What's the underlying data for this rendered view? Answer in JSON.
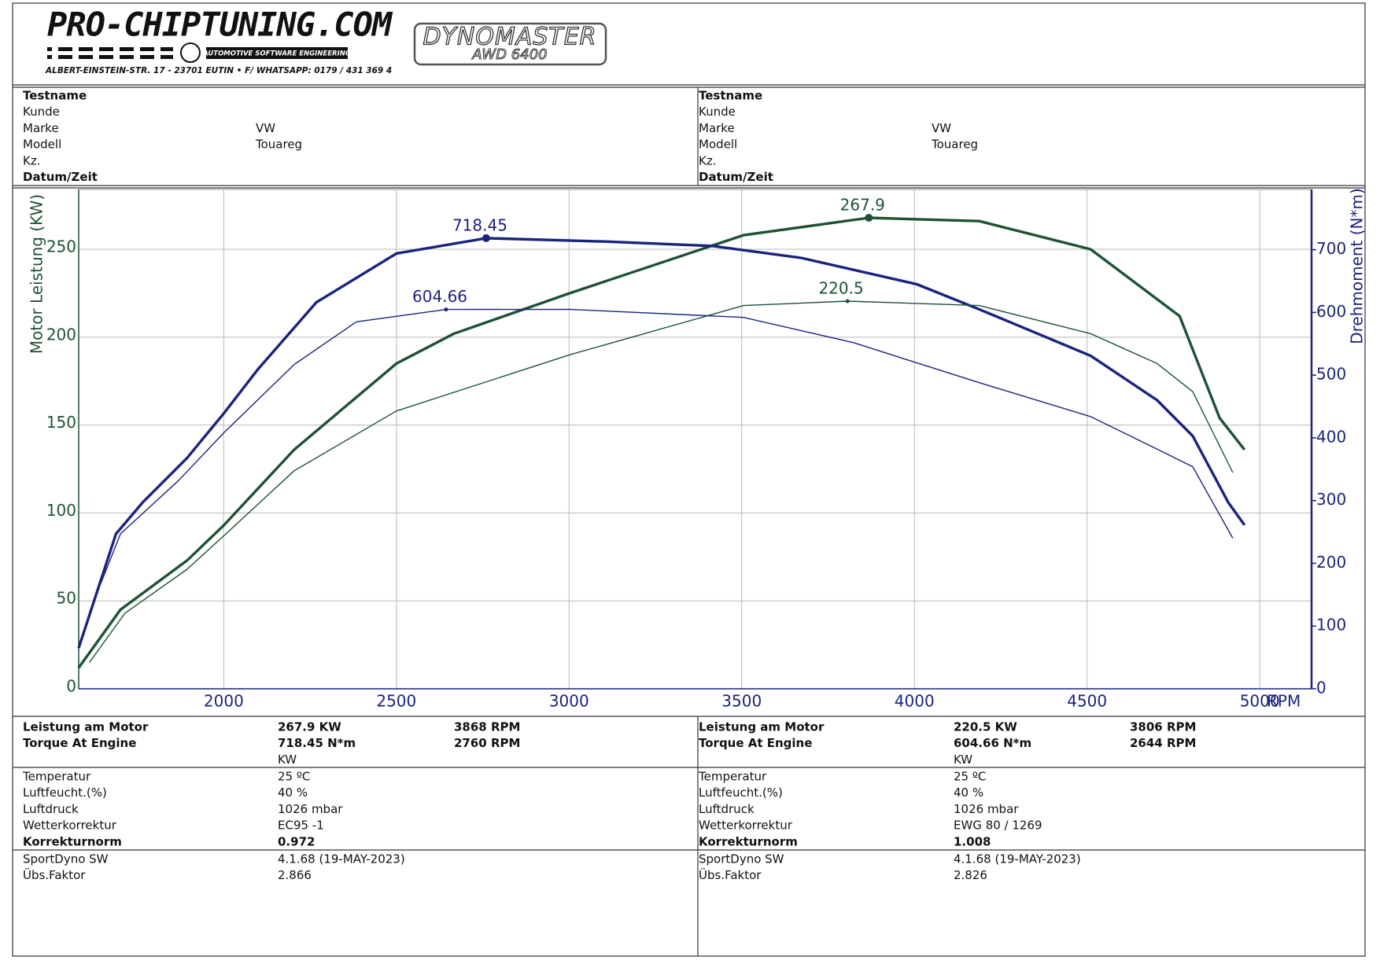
{
  "header": {
    "brand": "PRO-CHIPTUNING.COM",
    "tagline": "AUTOMOTIVE SOFTWARE ENGINEERING",
    "address": "ALBERT-EINSTEIN-STR. 17 - 23701 EUTIN • F/ WHATSAPP: 0179 / 431 369 4",
    "dyno": "DYNOMASTER",
    "dyno_model": "AWD 6400"
  },
  "info": {
    "columns": [
      [
        [
          "Testname"
        ],
        [
          "Kunde"
        ],
        [
          "Marke",
          "VW"
        ],
        [
          "Modell",
          "Touareg"
        ],
        [
          "Kz."
        ],
        [
          "Datum/Zeit"
        ]
      ],
      [
        [
          "Testname"
        ],
        [
          "Kunde"
        ],
        [
          "Marke",
          "VW"
        ],
        [
          "Modell",
          "Touareg"
        ],
        [
          "Kz."
        ],
        [
          "Datum/Zeit"
        ]
      ]
    ]
  },
  "chart_data": {
    "type": "line",
    "xlabel": "RPM",
    "ylabel": "Motor Leistung (KW)",
    "y2label": "Drehmoment (N*m)",
    "xlim": [
      1580,
      5150
    ],
    "xticks": [
      2000,
      2500,
      3000,
      3500,
      4000,
      4500,
      5000
    ],
    "ylim": [
      0,
      284
    ],
    "yticks": [
      0,
      50,
      100,
      150,
      200,
      250
    ],
    "y2lim": [
      0,
      796
    ],
    "y2ticks": [
      0,
      100,
      200,
      300,
      400,
      500,
      600,
      700
    ],
    "ycolor": "#1d5234",
    "y2color": "#1a237e",
    "grid": true,
    "series": [
      {
        "color": "#1d5234",
        "axis": "y",
        "x": [
          1580,
          1701,
          1894,
          2000,
          2204,
          2500,
          2667,
          3002,
          3505,
          3868,
          4188,
          4510,
          4768,
          4884,
          4956
        ],
        "values": [
          12,
          45,
          73,
          93,
          136,
          185,
          202,
          225,
          258,
          267.9,
          266,
          250,
          212,
          154,
          136
        ],
        "peak": {
          "x": 3868,
          "value": 267.9
        }
      },
      {
        "color": "#1a237e",
        "axis": "y2",
        "x": [
          1580,
          1688,
          1765,
          1894,
          2000,
          2100,
          2268,
          2500,
          2760,
          3105,
          3415,
          3672,
          4007,
          4188,
          4510,
          4703,
          4806,
          4909,
          4956
        ],
        "values": [
          65,
          247,
          297,
          368,
          439,
          510,
          616,
          694,
          718.45,
          713,
          706,
          687,
          645,
          605,
          531,
          460,
          403,
          297,
          261
        ],
        "peak": {
          "x": 2760,
          "value": 718.45
        }
      },
      {
        "color": "#1d5234",
        "axis": "y",
        "x": [
          1611,
          1714,
          1894,
          2000,
          2204,
          2500,
          3002,
          3505,
          3806,
          4188,
          4510,
          4703,
          4806,
          4922
        ],
        "values": [
          15,
          43,
          68,
          87,
          124,
          158,
          190,
          218,
          220.5,
          218,
          202,
          185,
          169,
          123
        ],
        "peak": {
          "x": 3806,
          "value": 220.5
        }
      },
      {
        "color": "#1a237e",
        "axis": "y2",
        "x": [
          1611,
          1701,
          1869,
          2000,
          2204,
          2384,
          2644,
          3002,
          3505,
          3822,
          4188,
          4510,
          4703,
          4806,
          4922
        ],
        "values": [
          122,
          247,
          332,
          408,
          517,
          585,
          604.66,
          605,
          592,
          552,
          488,
          434,
          382,
          354,
          240
        ],
        "peak": {
          "x": 2644,
          "value": 604.66
        }
      }
    ]
  },
  "results": {
    "columns": [
      [
        [
          "Leistung am Motor",
          "267.9 KW",
          "3868 RPM"
        ],
        [
          "Torque At Engine",
          "718.45 N*m",
          "2760 RPM"
        ],
        [
          null,
          "KW"
        ]
      ],
      [
        [
          "Leistung am Motor",
          "220.5 KW",
          "3806 RPM"
        ],
        [
          "Torque At Engine",
          "604.66 N*m",
          "2644 RPM"
        ],
        [
          null,
          "KW"
        ]
      ]
    ]
  },
  "conditions": {
    "columns": [
      [
        [
          "Temperatur",
          "25 ºC"
        ],
        [
          "Luftfeucht.(%)",
          "40 %"
        ],
        [
          "Luftdruck",
          "1026 mbar"
        ],
        [
          "Wetterkorrektur",
          "EC95 -1"
        ],
        [
          "Korrekturnorm",
          "0.972"
        ]
      ],
      [
        [
          "Temperatur",
          "25 ºC"
        ],
        [
          "Luftfeucht.(%)",
          "40 %"
        ],
        [
          "Luftdruck",
          "1026 mbar"
        ],
        [
          "Wetterkorrektur",
          "EWG 80 / 1269"
        ],
        [
          "Korrekturnorm",
          "1.008"
        ]
      ]
    ]
  },
  "software": {
    "columns": [
      [
        [
          "SportDyno SW",
          "4.1.68 (19-MAY-2023)"
        ],
        [
          "Übs.Faktor",
          "2.866"
        ]
      ],
      [
        [
          "SportDyno SW",
          "4.1.68 (19-MAY-2023)"
        ],
        [
          "Übs.Faktor",
          "2.826"
        ]
      ]
    ]
  }
}
